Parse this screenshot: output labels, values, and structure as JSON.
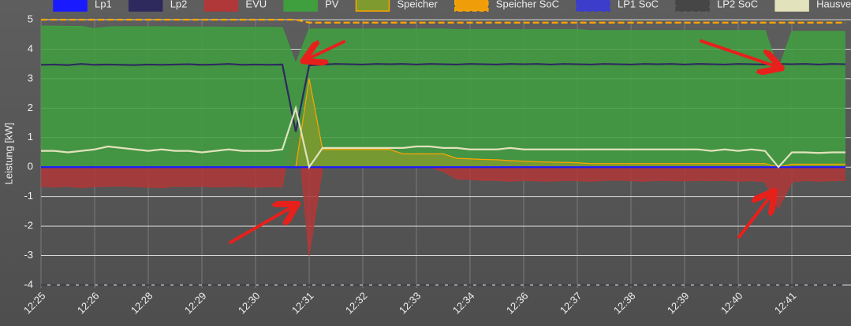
{
  "chart_data": {
    "type": "line",
    "y_label": "Leistung [kW]",
    "ylim": [
      -4,
      5
    ],
    "yticks": [
      5,
      4,
      3,
      2,
      1,
      0,
      -1,
      -2,
      -3,
      -4
    ],
    "grid": true,
    "legend": "top",
    "categories": [
      "12:25",
      null,
      null,
      null,
      "12:26",
      null,
      null,
      null,
      "12:28",
      null,
      null,
      null,
      "12:29",
      null,
      null,
      null,
      "12:30",
      null,
      null,
      null,
      "12:31",
      null,
      null,
      null,
      "12:32",
      null,
      null,
      null,
      "12:33",
      null,
      null,
      null,
      "12:34",
      null,
      null,
      null,
      "12:36",
      null,
      null,
      null,
      "12:37",
      null,
      null,
      null,
      "12:38",
      null,
      null,
      null,
      "12:39",
      null,
      null,
      null,
      "12:40",
      null,
      null,
      null,
      "12:41",
      null,
      null,
      null,
      null
    ],
    "series": [
      {
        "name": "Lp1",
        "color": "#1a1aff",
        "kind": "line",
        "values": [
          0,
          0,
          0,
          0,
          0,
          0,
          0,
          0,
          0,
          0,
          0,
          0,
          0,
          0,
          0,
          0,
          0,
          0,
          0,
          0,
          0,
          0,
          0,
          0,
          0,
          0,
          0,
          0,
          0,
          0,
          0,
          0,
          0,
          0,
          0,
          0,
          0,
          0,
          0,
          0,
          0,
          0,
          0,
          0,
          0,
          0,
          0,
          0,
          0,
          0,
          0,
          0,
          0,
          0,
          0,
          0,
          0,
          0,
          0,
          0,
          0
        ]
      },
      {
        "name": "Lp2",
        "color": "#2e2a5e",
        "kind": "line",
        "values": [
          3.47,
          3.48,
          3.46,
          3.5,
          3.47,
          3.48,
          3.47,
          3.46,
          3.48,
          3.47,
          3.48,
          3.49,
          3.47,
          3.48,
          3.5,
          3.47,
          3.48,
          3.47,
          3.48,
          1.2,
          3.45,
          3.48,
          3.5,
          3.49,
          3.48,
          3.5,
          3.49,
          3.5,
          3.48,
          3.5,
          3.49,
          3.48,
          3.5,
          3.49,
          3.48,
          3.5,
          3.49,
          3.5,
          3.48,
          3.5,
          3.49,
          3.48,
          3.5,
          3.49,
          3.48,
          3.5,
          3.49,
          3.5,
          3.48,
          3.5,
          3.49,
          3.48,
          3.5,
          3.49,
          3.48,
          3.5,
          3.49,
          3.5,
          3.48,
          3.5,
          3.49
        ]
      },
      {
        "name": "EVU",
        "color": "#b03838",
        "kind": "area",
        "values": [
          -0.65,
          -0.68,
          -0.65,
          -0.7,
          -0.66,
          -0.65,
          -0.64,
          -0.66,
          -0.68,
          -0.7,
          -0.65,
          -0.66,
          -0.65,
          -0.67,
          -0.66,
          -0.65,
          -0.68,
          -0.66,
          -0.67,
          2.0,
          -3.0,
          0,
          0,
          0,
          0,
          0,
          0,
          0,
          0,
          0,
          -0.15,
          -0.4,
          -0.42,
          -0.45,
          -0.45,
          -0.48,
          -0.45,
          -0.47,
          -0.48,
          -0.45,
          -0.46,
          -0.48,
          -0.45,
          -0.44,
          -0.46,
          -0.48,
          -0.45,
          -0.46,
          -0.47,
          -0.45,
          -0.46,
          -0.45,
          -0.48,
          -0.46,
          -0.5,
          -1.4,
          -0.5,
          -0.45,
          -0.48,
          -0.46,
          -0.45
        ]
      },
      {
        "name": "PV",
        "color": "#3f9f3f",
        "kind": "area",
        "values": [
          4.78,
          4.78,
          4.77,
          4.77,
          4.7,
          4.75,
          4.76,
          4.76,
          4.76,
          4.76,
          4.75,
          4.75,
          4.75,
          4.75,
          4.74,
          4.74,
          4.74,
          4.74,
          4.73,
          3.5,
          4.68,
          4.68,
          4.68,
          4.68,
          4.68,
          4.68,
          4.68,
          4.68,
          4.68,
          4.68,
          4.68,
          4.66,
          4.66,
          4.66,
          4.66,
          4.66,
          4.66,
          4.66,
          4.66,
          4.66,
          4.66,
          4.63,
          4.63,
          4.63,
          4.63,
          4.63,
          4.63,
          4.63,
          4.63,
          4.63,
          4.63,
          4.63,
          4.63,
          4.63,
          4.63,
          3.3,
          4.6,
          4.6,
          4.6,
          4.6,
          4.6
        ]
      },
      {
        "name": "Speicher",
        "color": "#7f9a2e",
        "stroke": "#ffa500",
        "kind": "area",
        "values": [
          0,
          0,
          0,
          0,
          0,
          0,
          0,
          0,
          0,
          0,
          0,
          0,
          0,
          0,
          0,
          0,
          0,
          0,
          0,
          0,
          3.0,
          0.6,
          0.6,
          0.6,
          0.6,
          0.6,
          0.6,
          0.45,
          0.45,
          0.45,
          0.45,
          0.3,
          0.28,
          0.26,
          0.25,
          0.22,
          0.2,
          0.18,
          0.17,
          0.16,
          0.15,
          0.12,
          0.12,
          0.12,
          0.12,
          0.12,
          0.12,
          0.12,
          0.12,
          0.12,
          0.12,
          0.12,
          0.12,
          0.12,
          0.12,
          0,
          0.1,
          0.1,
          0.1,
          0.1,
          0.1
        ]
      },
      {
        "name": "Speicher SoC",
        "color": "#ffa500",
        "kind": "line",
        "dashed": true,
        "values": [
          5,
          5,
          5,
          5,
          5,
          5,
          5,
          5,
          5,
          5,
          5,
          5,
          5,
          5,
          5,
          5,
          5,
          5,
          5,
          5,
          4.9,
          4.9,
          4.9,
          4.9,
          4.9,
          4.9,
          4.9,
          4.9,
          4.9,
          4.9,
          4.9,
          4.9,
          4.9,
          4.9,
          4.9,
          4.9,
          4.9,
          4.9,
          4.9,
          4.9,
          4.9,
          4.9,
          4.9,
          4.9,
          4.9,
          4.9,
          4.9,
          4.9,
          4.9,
          4.9,
          4.9,
          4.9,
          4.9,
          4.9,
          4.9,
          4.9,
          4.9,
          4.9,
          4.9,
          4.9,
          4.9
        ]
      },
      {
        "name": "LP1 SoC",
        "color": "#3a3ad8",
        "kind": "line",
        "dashed": true,
        "values": [
          -4,
          -4,
          -4,
          -4,
          -4,
          -4,
          -4,
          -4,
          -4,
          -4,
          -4,
          -4,
          -4,
          -4,
          -4,
          -4,
          -4,
          -4,
          -4,
          -4,
          -4,
          -4,
          -4,
          -4,
          -4,
          -4,
          -4,
          -4,
          -4,
          -4,
          -4,
          -4,
          -4,
          -4,
          -4,
          -4,
          -4,
          -4,
          -4,
          -4,
          -4,
          -4,
          -4,
          -4,
          -4,
          -4,
          -4,
          -4,
          -4,
          -4,
          -4,
          -4,
          -4,
          -4,
          -4,
          -4,
          -4,
          -4,
          -4,
          -4,
          -4
        ]
      },
      {
        "name": "LP2 SoC",
        "color": "#444444",
        "kind": "line",
        "dashed": true,
        "values": [
          -4,
          -4,
          -4,
          -4,
          -4,
          -4,
          -4,
          -4,
          -4,
          -4,
          -4,
          -4,
          -4,
          -4,
          -4,
          -4,
          -4,
          -4,
          -4,
          -4,
          -4,
          -4,
          -4,
          -4,
          -4,
          -4,
          -4,
          -4,
          -4,
          -4,
          -4,
          -4,
          -4,
          -4,
          -4,
          -4,
          -4,
          -4,
          -4,
          -4,
          -4,
          -4,
          -4,
          -4,
          -4,
          -4,
          -4,
          -4,
          -4,
          -4,
          -4,
          -4,
          -4,
          -4,
          -4,
          -4,
          -4,
          -4,
          -4,
          -4,
          -4
        ]
      },
      {
        "name": "Hausverb",
        "color": "#e2e2bc",
        "kind": "line",
        "values": [
          0.55,
          0.55,
          0.5,
          0.55,
          0.6,
          0.7,
          0.65,
          0.6,
          0.55,
          0.6,
          0.55,
          0.55,
          0.5,
          0.55,
          0.6,
          0.55,
          0.55,
          0.55,
          0.6,
          2.0,
          0,
          0.65,
          0.65,
          0.65,
          0.65,
          0.65,
          0.65,
          0.65,
          0.7,
          0.7,
          0.65,
          0.65,
          0.6,
          0.6,
          0.6,
          0.65,
          0.6,
          0.6,
          0.6,
          0.6,
          0.6,
          0.6,
          0.6,
          0.6,
          0.6,
          0.6,
          0.6,
          0.6,
          0.6,
          0.6,
          0.55,
          0.6,
          0.55,
          0.6,
          0.55,
          0,
          0.5,
          0.5,
          0.48,
          0.5,
          0.5
        ]
      }
    ]
  }
}
